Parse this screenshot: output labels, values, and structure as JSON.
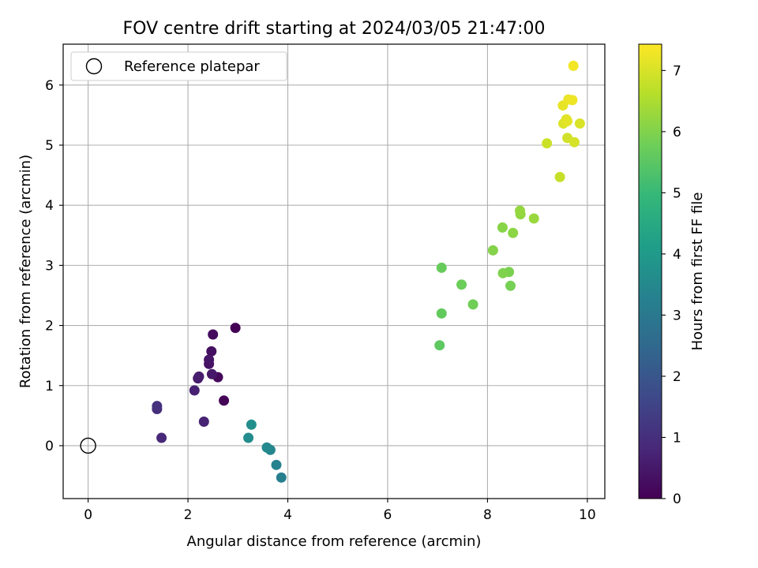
{
  "chart_data": {
    "type": "scatter",
    "title": "FOV centre drift starting at 2024/03/05 21:47:00",
    "xlabel": "Angular distance from reference (arcmin)",
    "ylabel": "Rotation from reference (arcmin)",
    "xlim": [
      -0.5,
      10.35
    ],
    "ylim": [
      -0.88,
      6.68
    ],
    "xticks": [
      0,
      2,
      4,
      6,
      8,
      10
    ],
    "yticks": [
      0,
      1,
      2,
      3,
      4,
      5,
      6
    ],
    "grid": true,
    "legend": {
      "position": "top-left",
      "entries": [
        {
          "label": "Reference platepar",
          "marker": "open-circle",
          "color": "#000000"
        }
      ]
    },
    "reference_point": {
      "x": 0,
      "y": 0
    },
    "colorbar": {
      "label": "Hours from first FF file",
      "range": [
        0,
        7.43
      ],
      "ticks": [
        0,
        1,
        2,
        3,
        4,
        5,
        6,
        7
      ],
      "colormap": "viridis",
      "colors": [
        "#440154",
        "#482878",
        "#3e4989",
        "#31688e",
        "#26828e",
        "#1f9e89",
        "#35b779",
        "#6ece58",
        "#b5de2b",
        "#fde725"
      ]
    },
    "points": [
      {
        "x": 2.95,
        "y": 1.96,
        "c": 0.0
      },
      {
        "x": 2.72,
        "y": 0.75,
        "c": 0.08
      },
      {
        "x": 2.6,
        "y": 1.14,
        "c": 0.16
      },
      {
        "x": 2.5,
        "y": 1.85,
        "c": 0.24
      },
      {
        "x": 2.47,
        "y": 1.57,
        "c": 0.3
      },
      {
        "x": 2.42,
        "y": 1.36,
        "c": 0.36
      },
      {
        "x": 2.42,
        "y": 1.43,
        "c": 0.42
      },
      {
        "x": 2.48,
        "y": 1.19,
        "c": 0.48
      },
      {
        "x": 2.2,
        "y": 1.12,
        "c": 0.54
      },
      {
        "x": 2.22,
        "y": 1.15,
        "c": 0.6
      },
      {
        "x": 2.13,
        "y": 0.92,
        "c": 0.66
      },
      {
        "x": 2.32,
        "y": 0.4,
        "c": 0.72
      },
      {
        "x": 1.47,
        "y": 0.13,
        "c": 0.85
      },
      {
        "x": 1.38,
        "y": 0.61,
        "c": 0.95
      },
      {
        "x": 1.38,
        "y": 0.66,
        "c": 1.05
      },
      {
        "x": 3.87,
        "y": -0.53,
        "c": 3.2
      },
      {
        "x": 3.77,
        "y": -0.32,
        "c": 3.3
      },
      {
        "x": 3.65,
        "y": -0.07,
        "c": 3.4
      },
      {
        "x": 3.58,
        "y": -0.03,
        "c": 3.5
      },
      {
        "x": 3.21,
        "y": 0.13,
        "c": 3.6
      },
      {
        "x": 3.27,
        "y": 0.35,
        "c": 3.7
      },
      {
        "x": 7.04,
        "y": 1.67,
        "c": 5.55
      },
      {
        "x": 7.08,
        "y": 2.2,
        "c": 5.62
      },
      {
        "x": 7.08,
        "y": 2.96,
        "c": 5.68
      },
      {
        "x": 7.48,
        "y": 2.68,
        "c": 5.74
      },
      {
        "x": 7.71,
        "y": 2.35,
        "c": 5.8
      },
      {
        "x": 8.46,
        "y": 2.66,
        "c": 5.86
      },
      {
        "x": 8.43,
        "y": 2.89,
        "c": 5.92
      },
      {
        "x": 8.31,
        "y": 2.87,
        "c": 5.98
      },
      {
        "x": 8.11,
        "y": 3.25,
        "c": 6.03
      },
      {
        "x": 8.3,
        "y": 3.63,
        "c": 6.08
      },
      {
        "x": 8.51,
        "y": 3.54,
        "c": 6.13
      },
      {
        "x": 8.66,
        "y": 3.85,
        "c": 6.18
      },
      {
        "x": 8.65,
        "y": 3.91,
        "c": 6.23
      },
      {
        "x": 8.93,
        "y": 3.78,
        "c": 6.28
      },
      {
        "x": 9.45,
        "y": 4.47,
        "c": 6.8
      },
      {
        "x": 9.19,
        "y": 5.03,
        "c": 6.86
      },
      {
        "x": 9.6,
        "y": 5.12,
        "c": 6.92
      },
      {
        "x": 9.74,
        "y": 5.05,
        "c": 6.97
      },
      {
        "x": 9.85,
        "y": 5.36,
        "c": 7.02
      },
      {
        "x": 9.52,
        "y": 5.36,
        "c": 7.06
      },
      {
        "x": 9.58,
        "y": 5.43,
        "c": 7.1
      },
      {
        "x": 9.6,
        "y": 5.4,
        "c": 7.14
      },
      {
        "x": 9.51,
        "y": 5.66,
        "c": 7.18
      },
      {
        "x": 9.62,
        "y": 5.76,
        "c": 7.22
      },
      {
        "x": 9.7,
        "y": 5.75,
        "c": 7.26
      },
      {
        "x": 9.72,
        "y": 6.32,
        "c": 7.3
      }
    ]
  }
}
